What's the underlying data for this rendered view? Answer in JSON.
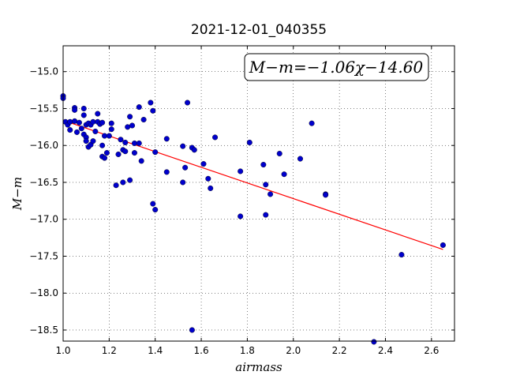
{
  "chart_data": {
    "type": "scatter",
    "title": "2021-12-01_040355",
    "xlabel": "airmass",
    "ylabel": "M−m",
    "annotation": "M−m=−1.06χ−14.60",
    "xlim": [
      1.0,
      2.7
    ],
    "ylim": [
      -18.65,
      -14.65
    ],
    "y_inverted": true,
    "grid": true,
    "xticks": [
      1.0,
      1.2,
      1.4,
      1.6,
      1.8,
      2.0,
      2.2,
      2.4,
      2.6
    ],
    "xtick_labels": [
      "1.0",
      "1.2",
      "1.4",
      "1.6",
      "1.8",
      "2.0",
      "2.2",
      "2.4",
      "2.6"
    ],
    "yticks": [
      -15.0,
      -15.5,
      -16.0,
      -16.5,
      -17.0,
      -17.5,
      -18.0,
      -18.5
    ],
    "ytick_labels": [
      "−15.0",
      "−15.5",
      "−16.0",
      "−16.5",
      "−17.0",
      "−17.5",
      "−18.0",
      "−18.5"
    ],
    "fit": {
      "slope": -1.06,
      "intercept": -14.6,
      "x_range": [
        1.0,
        2.65
      ],
      "color": "#ff0000"
    },
    "point_color": "#0000cc",
    "points": [
      [
        1.0,
        -15.33
      ],
      [
        1.0,
        -15.36
      ],
      [
        1.01,
        -15.68
      ],
      [
        1.02,
        -15.72
      ],
      [
        1.03,
        -15.68
      ],
      [
        1.03,
        -15.79
      ],
      [
        1.05,
        -15.49
      ],
      [
        1.05,
        -15.52
      ],
      [
        1.05,
        -15.67
      ],
      [
        1.06,
        -15.82
      ],
      [
        1.07,
        -15.69
      ],
      [
        1.08,
        -15.77
      ],
      [
        1.09,
        -15.5
      ],
      [
        1.09,
        -15.59
      ],
      [
        1.09,
        -15.85
      ],
      [
        1.1,
        -15.72
      ],
      [
        1.1,
        -15.89
      ],
      [
        1.1,
        -15.94
      ],
      [
        1.11,
        -15.7
      ],
      [
        1.11,
        -16.02
      ],
      [
        1.12,
        -15.99
      ],
      [
        1.12,
        -15.72
      ],
      [
        1.13,
        -15.94
      ],
      [
        1.13,
        -15.68
      ],
      [
        1.14,
        -15.81
      ],
      [
        1.15,
        -15.68
      ],
      [
        1.15,
        -15.57
      ],
      [
        1.16,
        -15.71
      ],
      [
        1.17,
        -15.69
      ],
      [
        1.17,
        -16.0
      ],
      [
        1.17,
        -16.15
      ],
      [
        1.18,
        -16.17
      ],
      [
        1.18,
        -15.87
      ],
      [
        1.19,
        -16.1
      ],
      [
        1.2,
        -15.87
      ],
      [
        1.21,
        -15.78
      ],
      [
        1.21,
        -15.7
      ],
      [
        1.23,
        -16.54
      ],
      [
        1.24,
        -16.12
      ],
      [
        1.25,
        -15.92
      ],
      [
        1.26,
        -16.06
      ],
      [
        1.26,
        -16.5
      ],
      [
        1.27,
        -16.08
      ],
      [
        1.27,
        -15.96
      ],
      [
        1.28,
        -15.75
      ],
      [
        1.29,
        -16.47
      ],
      [
        1.29,
        -15.61
      ],
      [
        1.3,
        -15.73
      ],
      [
        1.31,
        -15.97
      ],
      [
        1.31,
        -16.1
      ],
      [
        1.33,
        -15.97
      ],
      [
        1.33,
        -15.48
      ],
      [
        1.34,
        -16.21
      ],
      [
        1.35,
        -15.65
      ],
      [
        1.38,
        -15.42
      ],
      [
        1.39,
        -15.53
      ],
      [
        1.39,
        -16.79
      ],
      [
        1.4,
        -16.87
      ],
      [
        1.4,
        -16.09
      ],
      [
        1.45,
        -15.91
      ],
      [
        1.45,
        -16.36
      ],
      [
        1.52,
        -16.01
      ],
      [
        1.52,
        -16.5
      ],
      [
        1.53,
        -16.3
      ],
      [
        1.54,
        -15.42
      ],
      [
        1.56,
        -16.03
      ],
      [
        1.57,
        -16.06
      ],
      [
        1.56,
        -18.5
      ],
      [
        1.61,
        -16.25
      ],
      [
        1.63,
        -16.45
      ],
      [
        1.64,
        -16.58
      ],
      [
        1.66,
        -15.89
      ],
      [
        1.77,
        -16.35
      ],
      [
        1.77,
        -16.96
      ],
      [
        1.81,
        -15.96
      ],
      [
        1.87,
        -16.26
      ],
      [
        1.88,
        -16.53
      ],
      [
        1.88,
        -16.94
      ],
      [
        1.9,
        -16.66
      ],
      [
        1.94,
        -16.11
      ],
      [
        1.96,
        -16.39
      ],
      [
        2.03,
        -16.18
      ],
      [
        2.08,
        -15.7
      ],
      [
        2.14,
        -16.66
      ],
      [
        2.14,
        -16.67
      ],
      [
        2.35,
        -18.66
      ],
      [
        2.47,
        -17.48
      ],
      [
        2.65,
        -17.35
      ]
    ]
  }
}
